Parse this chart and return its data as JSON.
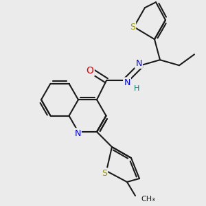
{
  "background_color": "#ebebeb",
  "bond_color": "#1a1a1a",
  "atom_colors": {
    "S": "#999900",
    "N": "#0000ee",
    "O": "#ee0000",
    "H": "#008080",
    "C": "#1a1a1a"
  },
  "figsize": [
    3.0,
    3.0
  ],
  "dpi": 100
}
